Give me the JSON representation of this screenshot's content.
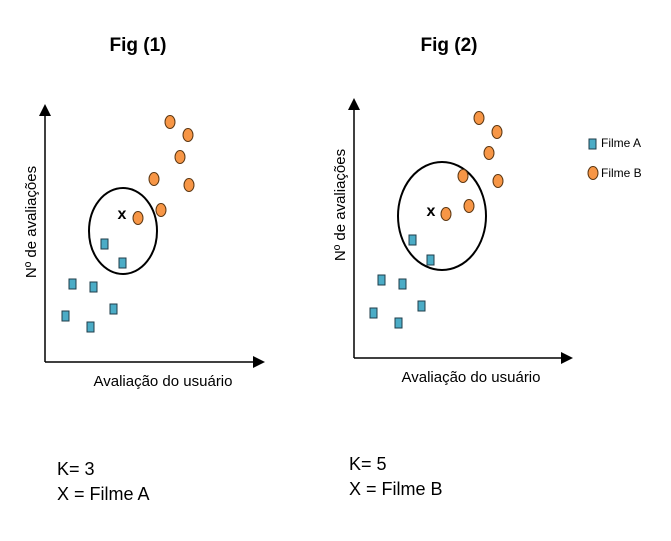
{
  "colors": {
    "filme_a": "#4bacc6",
    "filme_a_stroke": "#1f3d4a",
    "filme_b": "#f79646",
    "filme_b_stroke": "#5a3612",
    "axis": "#000000"
  },
  "figures": [
    {
      "title": "Fig (1)",
      "xlabel": "Avaliação do usuário",
      "ylabel": "Nº de avaliações",
      "query_label": "x",
      "result_k": "K= 3",
      "result_x": "X = Filme A"
    },
    {
      "title": "Fig (2)",
      "xlabel": "Avaliação do usuário",
      "ylabel": "Nº de avaliações",
      "query_label": "x",
      "result_k": "K= 5",
      "result_x": "X = Filme B"
    }
  ],
  "legend": [
    {
      "label": "Filme A",
      "icon": "square-marker"
    },
    {
      "label": "Filme B",
      "icon": "circle-marker"
    }
  ]
}
